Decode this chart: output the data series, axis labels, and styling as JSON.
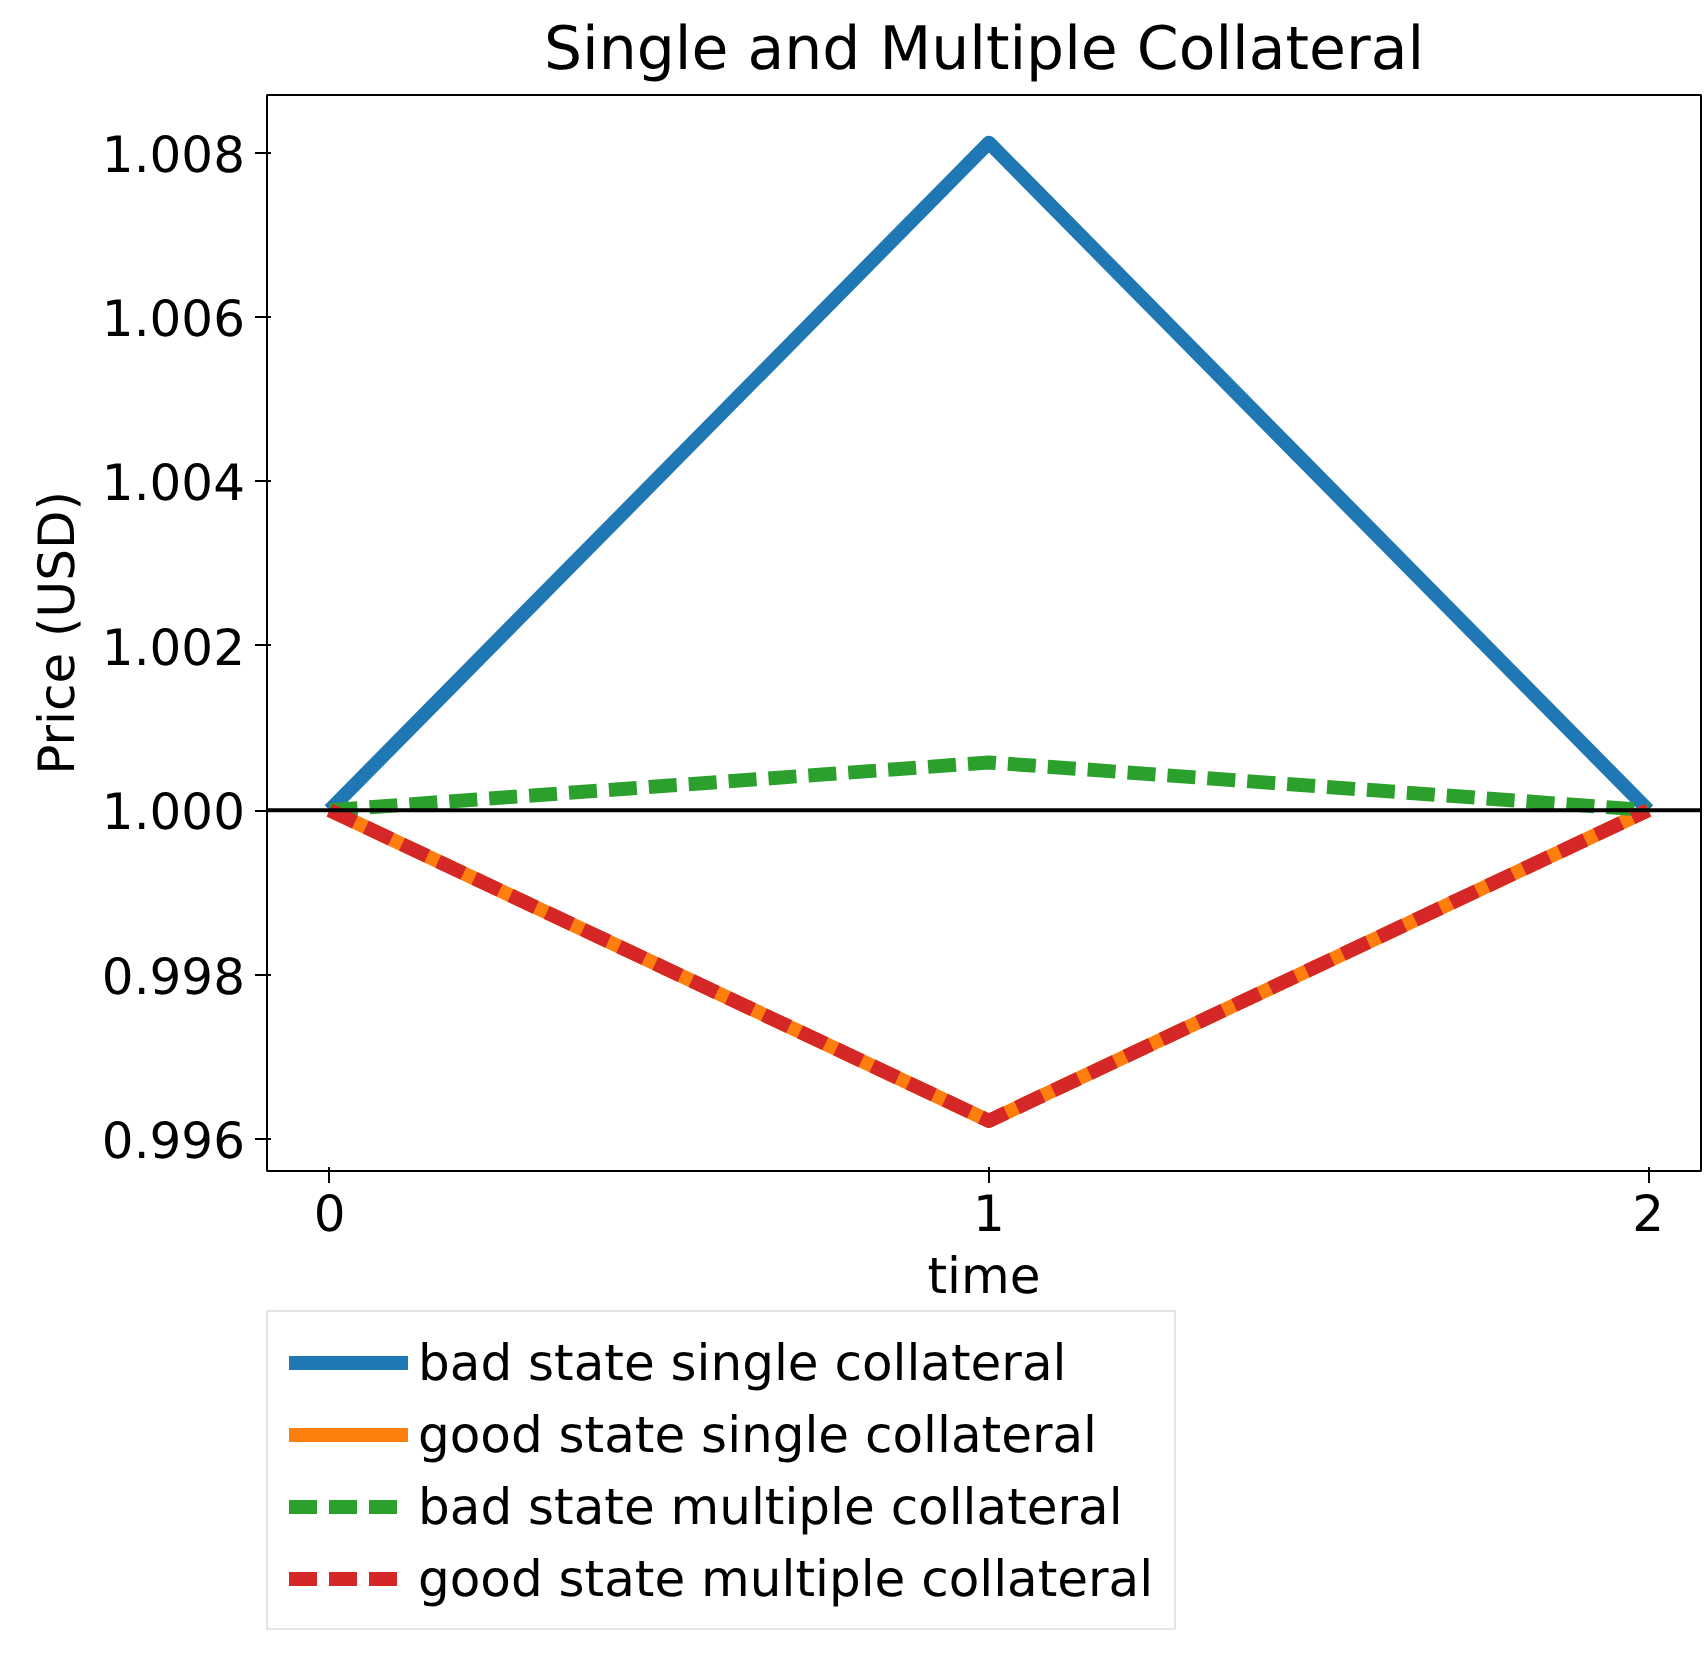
{
  "chart_data": {
    "type": "line",
    "title": "Single and Multiple Collateral",
    "xlabel": "time",
    "ylabel": "Price (USD)",
    "x": [
      0,
      1,
      2
    ],
    "series": [
      {
        "name": "bad state single collateral",
        "color": "#1f77b4",
        "values": [
          1.0,
          1.00812,
          1.0
        ],
        "line_style": "solid"
      },
      {
        "name": "good state single collateral",
        "color": "#ff7f0e",
        "values": [
          1.0,
          0.99622,
          1.0
        ],
        "line_style": "solid"
      },
      {
        "name": "bad state multiple collateral",
        "color": "#2ca02c",
        "values": [
          1.0,
          1.00058,
          1.0
        ],
        "line_style": "dashed"
      },
      {
        "name": "good state multiple collateral",
        "color": "#d62728",
        "values": [
          1.0,
          0.99622,
          1.0
        ],
        "line_style": "dashed"
      }
    ],
    "xlim": [
      -0.095,
      2.08
    ],
    "ylim": [
      0.99561,
      1.0087
    ],
    "xticks": [
      0,
      1,
      2
    ],
    "yticks": [
      {
        "value": 0.996,
        "label": "0.996"
      },
      {
        "value": 0.998,
        "label": "0.998"
      },
      {
        "value": 1.0,
        "label": "1.000"
      },
      {
        "value": 1.002,
        "label": "1.002"
      },
      {
        "value": 1.004,
        "label": "1.004"
      },
      {
        "value": 1.006,
        "label": "1.006"
      },
      {
        "value": 1.008,
        "label": "1.008"
      }
    ],
    "ref_lines": [
      {
        "axis": "y",
        "value": 1.0,
        "color": "#000000",
        "line_style": "solid"
      }
    ],
    "grid": false,
    "legend": "bottom",
    "marker": "none"
  }
}
